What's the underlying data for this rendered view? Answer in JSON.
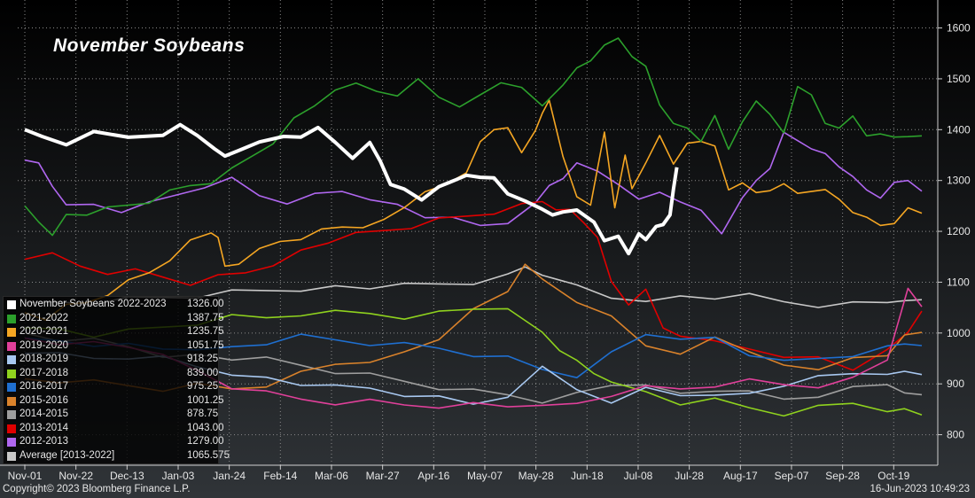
{
  "chart_data": {
    "type": "line",
    "title": "November Soybeans",
    "x_tick_labels": [
      "Nov-01",
      "Nov-22",
      "Dec-13",
      "Jan-03",
      "Jan-24",
      "Feb-14",
      "Mar-06",
      "Mar-27",
      "Apr-16",
      "May-07",
      "May-28",
      "Jun-18",
      "Jul-08",
      "Jul-28",
      "Aug-17",
      "Sep-07",
      "Sep-28",
      "Oct-19"
    ],
    "y_ticks": [
      800,
      900,
      1000,
      1100,
      1200,
      1300,
      1400,
      1500,
      1600
    ],
    "ylim": [
      740,
      1655
    ],
    "x_days": [
      0,
      260
    ],
    "grid": true,
    "legend_position": "bottom-left",
    "series": [
      {
        "name": "November Soybeans 2022-2023",
        "last": "1326.00",
        "color": "#ffffff",
        "x": [
          0,
          5,
          12,
          20,
          30,
          40,
          45,
          50,
          55,
          58,
          62,
          68,
          75,
          80,
          85,
          90,
          95,
          100,
          103,
          106,
          110,
          115,
          120,
          125,
          128,
          132,
          136,
          140,
          145,
          150,
          153,
          156,
          160,
          165,
          168,
          172,
          175,
          178,
          180,
          183,
          185,
          187,
          188,
          189
        ],
        "y": [
          1400,
          1385,
          1375,
          1390,
          1385,
          1395,
          1405,
          1390,
          1370,
          1345,
          1362,
          1368,
          1385,
          1390,
          1398,
          1375,
          1350,
          1370,
          1340,
          1300,
          1280,
          1265,
          1280,
          1300,
          1315,
          1300,
          1305,
          1280,
          1255,
          1245,
          1240,
          1235,
          1245,
          1210,
          1180,
          1195,
          1150,
          1195,
          1190,
          1205,
          1215,
          1240,
          1280,
          1326
        ]
      },
      {
        "name": "2021-2022",
        "last": "1387.75",
        "color": "#2ca02c",
        "x": [
          0,
          4,
          8,
          12,
          18,
          24,
          30,
          36,
          42,
          48,
          54,
          60,
          66,
          72,
          78,
          84,
          90,
          96,
          102,
          108,
          114,
          120,
          126,
          132,
          138,
          144,
          150,
          156,
          160,
          164,
          168,
          172,
          176,
          180,
          184,
          188,
          192,
          196,
          200,
          204,
          208,
          212,
          216,
          220,
          224,
          228,
          232,
          236,
          240,
          244,
          248,
          252,
          256,
          260
        ],
        "y": [
          1250,
          1220,
          1200,
          1230,
          1235,
          1240,
          1250,
          1260,
          1275,
          1290,
          1300,
          1320,
          1350,
          1380,
          1420,
          1450,
          1470,
          1490,
          1480,
          1460,
          1500,
          1470,
          1440,
          1470,
          1500,
          1480,
          1450,
          1480,
          1520,
          1540,
          1560,
          1580,
          1550,
          1520,
          1450,
          1420,
          1400,
          1380,
          1420,
          1360,
          1420,
          1450,
          1430,
          1400,
          1480,
          1470,
          1420,
          1400,
          1430,
          1380,
          1390,
          1390,
          1380,
          1387.75
        ]
      },
      {
        "name": "2020-2021",
        "last": "1235.75",
        "color": "#f5a623",
        "x": [
          0,
          6,
          12,
          18,
          24,
          30,
          36,
          42,
          48,
          54,
          56,
          58,
          62,
          68,
          74,
          80,
          86,
          92,
          98,
          104,
          110,
          116,
          122,
          128,
          132,
          136,
          140,
          144,
          148,
          150,
          152,
          156,
          160,
          164,
          168,
          171,
          174,
          176,
          180,
          184,
          188,
          192,
          196,
          200,
          204,
          208,
          212,
          216,
          220,
          224,
          228,
          232,
          236,
          240,
          244,
          248,
          252,
          256,
          260
        ],
        "y": [
          1040,
          1030,
          1050,
          1060,
          1080,
          1100,
          1120,
          1150,
          1180,
          1200,
          1180,
          1130,
          1140,
          1160,
          1180,
          1190,
          1200,
          1210,
          1215,
          1220,
          1250,
          1270,
          1290,
          1320,
          1370,
          1400,
          1410,
          1350,
          1400,
          1440,
          1455,
          1350,
          1260,
          1250,
          1400,
          1240,
          1350,
          1290,
          1330,
          1390,
          1340,
          1370,
          1380,
          1360,
          1280,
          1300,
          1270,
          1280,
          1300,
          1270,
          1280,
          1290,
          1260,
          1240,
          1220,
          1210,
          1220,
          1240,
          1235.75
        ]
      },
      {
        "name": "2019-2020",
        "last": "1051.75",
        "color": "#e0409a",
        "x": [
          0,
          10,
          20,
          30,
          40,
          50,
          60,
          70,
          80,
          90,
          100,
          110,
          120,
          130,
          140,
          150,
          160,
          170,
          180,
          190,
          200,
          210,
          220,
          230,
          240,
          250,
          256,
          260
        ],
        "y": [
          990,
          985,
          980,
          975,
          950,
          925,
          895,
          880,
          870,
          865,
          865,
          860,
          860,
          860,
          858,
          850,
          860,
          880,
          890,
          890,
          900,
          905,
          900,
          900,
          910,
          950,
          1080,
          1051.75
        ]
      },
      {
        "name": "2018-2019",
        "last": "918.25",
        "color": "#a8c8f0",
        "x": [
          0,
          10,
          20,
          30,
          40,
          50,
          60,
          70,
          80,
          90,
          100,
          110,
          120,
          130,
          140,
          150,
          160,
          170,
          180,
          190,
          200,
          210,
          220,
          230,
          240,
          250,
          255,
          260
        ],
        "y": [
          960,
          955,
          950,
          955,
          950,
          935,
          925,
          910,
          900,
          890,
          890,
          880,
          870,
          860,
          880,
          930,
          890,
          870,
          890,
          880,
          870,
          880,
          900,
          910,
          920,
          925,
          920,
          918.25
        ]
      },
      {
        "name": "2017-2018",
        "last": "839.00",
        "color": "#8fd21e",
        "x": [
          0,
          10,
          20,
          30,
          40,
          50,
          60,
          70,
          80,
          90,
          100,
          110,
          120,
          130,
          140,
          150,
          155,
          160,
          165,
          170,
          180,
          190,
          200,
          210,
          220,
          230,
          240,
          250,
          255,
          260
        ],
        "y": [
          1010,
          1005,
          995,
          1000,
          1010,
          1020,
          1030,
          1030,
          1040,
          1040,
          1040,
          1035,
          1040,
          1050,
          1040,
          1000,
          970,
          940,
          920,
          910,
          880,
          860,
          880,
          850,
          840,
          850,
          860,
          850,
          845,
          839
        ]
      },
      {
        "name": "2016-2017",
        "last": "975.25",
        "color": "#1f6fd0",
        "x": [
          0,
          10,
          20,
          30,
          40,
          50,
          60,
          70,
          80,
          90,
          100,
          110,
          120,
          130,
          140,
          150,
          160,
          170,
          180,
          190,
          200,
          210,
          220,
          230,
          240,
          250,
          255,
          260
        ],
        "y": [
          990,
          985,
          980,
          975,
          970,
          975,
          970,
          980,
          990,
          985,
          980,
          975,
          970,
          960,
          950,
          930,
          920,
          960,
          1000,
          980,
          990,
          960,
          940,
          950,
          960,
          970,
          980,
          975.25
        ]
      },
      {
        "name": "2015-2016",
        "last": "1001.25",
        "color": "#d9822b",
        "x": [
          0,
          10,
          20,
          30,
          40,
          50,
          60,
          70,
          80,
          90,
          100,
          110,
          120,
          130,
          140,
          145,
          150,
          160,
          170,
          180,
          190,
          200,
          210,
          220,
          230,
          240,
          250,
          255,
          260
        ],
        "y": [
          910,
          905,
          900,
          895,
          890,
          895,
          890,
          900,
          920,
          940,
          950,
          960,
          990,
          1040,
          1080,
          1140,
          1100,
          1060,
          1040,
          970,
          960,
          1000,
          960,
          940,
          920,
          950,
          960,
          990,
          1001.25
        ]
      },
      {
        "name": "2014-2015",
        "last": "878.75",
        "color": "#9e9e9e",
        "x": [
          0,
          10,
          20,
          30,
          40,
          50,
          60,
          70,
          80,
          90,
          100,
          110,
          120,
          130,
          140,
          150,
          160,
          170,
          180,
          190,
          200,
          210,
          220,
          230,
          240,
          250,
          255,
          260
        ],
        "y": [
          1000,
          990,
          985,
          975,
          960,
          955,
          950,
          945,
          935,
          925,
          915,
          905,
          895,
          885,
          880,
          870,
          880,
          900,
          890,
          880,
          890,
          880,
          870,
          880,
          890,
          900,
          890,
          878.75
        ]
      },
      {
        "name": "2013-2014",
        "last": "1043.00",
        "color": "#e00000",
        "x": [
          0,
          8,
          16,
          24,
          32,
          40,
          48,
          56,
          64,
          72,
          80,
          88,
          96,
          104,
          112,
          120,
          128,
          136,
          144,
          150,
          154,
          158,
          162,
          166,
          170,
          175,
          180,
          185,
          190,
          200,
          210,
          220,
          230,
          240,
          250,
          256,
          260
        ],
        "y": [
          1145,
          1150,
          1130,
          1120,
          1120,
          1110,
          1100,
          1110,
          1120,
          1140,
          1160,
          1180,
          1190,
          1200,
          1210,
          1220,
          1230,
          1240,
          1250,
          1260,
          1250,
          1240,
          1220,
          1180,
          1100,
          1060,
          1080,
          1010,
          1000,
          980,
          970,
          960,
          950,
          930,
          960,
          1000,
          1043
        ]
      },
      {
        "name": "2012-2013",
        "last": "1279.00",
        "color": "#b067f0",
        "x": [
          0,
          4,
          8,
          12,
          20,
          28,
          36,
          44,
          52,
          60,
          68,
          76,
          84,
          92,
          100,
          108,
          116,
          124,
          132,
          140,
          148,
          152,
          156,
          160,
          166,
          172,
          178,
          184,
          190,
          196,
          202,
          208,
          212,
          216,
          220,
          224,
          228,
          232,
          236,
          240,
          244,
          248,
          252,
          256,
          260
        ],
        "y": [
          1340,
          1330,
          1290,
          1260,
          1250,
          1240,
          1250,
          1270,
          1290,
          1300,
          1270,
          1260,
          1270,
          1280,
          1270,
          1250,
          1230,
          1220,
          1210,
          1220,
          1250,
          1290,
          1310,
          1330,
          1320,
          1300,
          1260,
          1280,
          1250,
          1240,
          1200,
          1260,
          1300,
          1330,
          1390,
          1380,
          1370,
          1350,
          1330,
          1300,
          1280,
          1270,
          1290,
          1300,
          1279
        ]
      },
      {
        "name": "Average  [2013-2022]",
        "last": "1065.575",
        "color": "#c8c8c8",
        "x": [
          0,
          10,
          20,
          30,
          40,
          50,
          60,
          70,
          80,
          90,
          100,
          110,
          120,
          130,
          140,
          145,
          150,
          160,
          170,
          180,
          190,
          200,
          210,
          220,
          230,
          240,
          250,
          255,
          260
        ],
        "y": [
          1060,
          1060,
          1060,
          1065,
          1070,
          1075,
          1080,
          1085,
          1090,
          1090,
          1090,
          1090,
          1095,
          1100,
          1110,
          1130,
          1120,
          1090,
          1070,
          1070,
          1070,
          1070,
          1070,
          1060,
          1055,
          1055,
          1060,
          1070,
          1065.575
        ]
      }
    ]
  },
  "footer": {
    "copyright": "Copyright© 2023 Bloomberg Finance L.P.",
    "timestamp": "16-Jun-2023 10:49:23"
  }
}
